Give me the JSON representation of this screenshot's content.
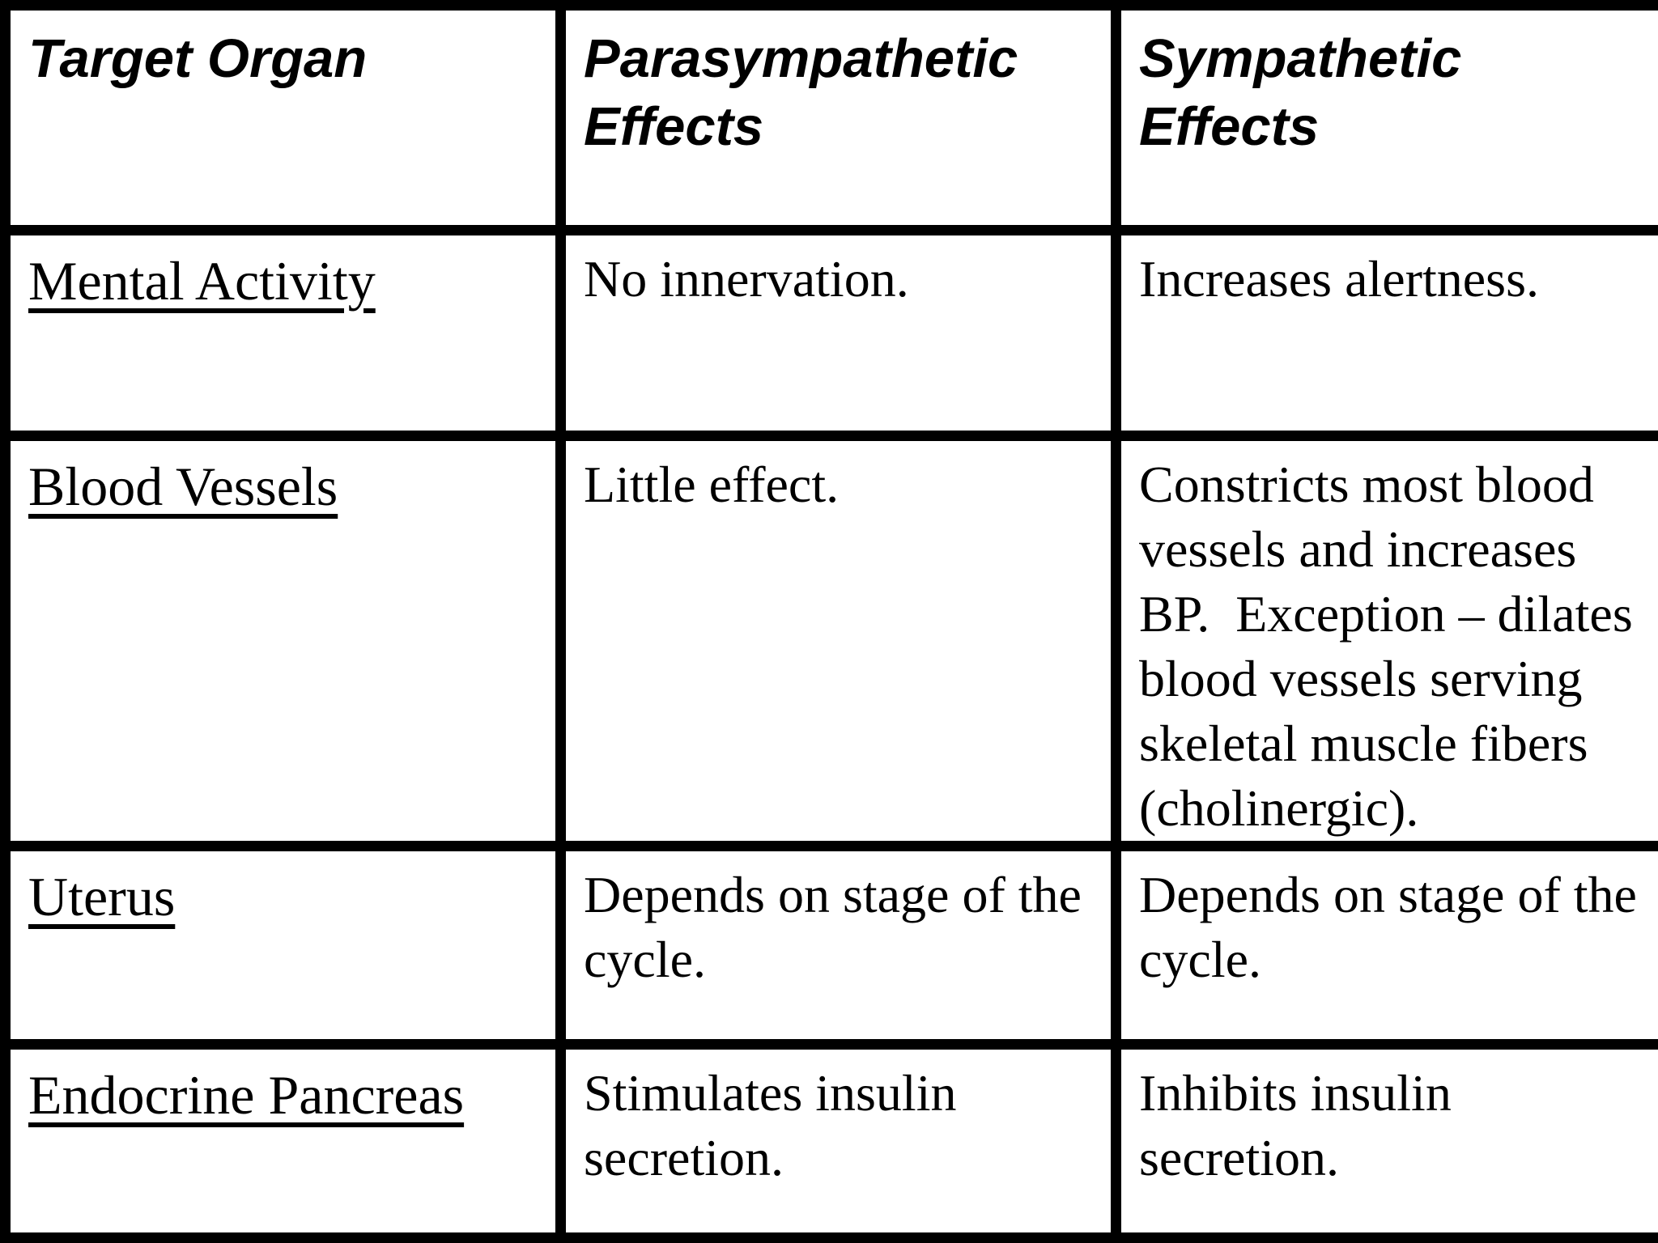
{
  "table": {
    "title": "Target organ autonomic effects table",
    "colors": {
      "border": "#000000",
      "background": "#ffffff",
      "text": "#000000"
    },
    "header": {
      "organ": "Target Organ",
      "parasympathetic": "Parasympathetic Effects",
      "sympathetic": "Sympathetic Effects"
    },
    "rows": [
      {
        "organ": "Mental Activity",
        "parasympathetic": "No innervation.",
        "sympathetic": "Increases alertness."
      },
      {
        "organ": "Blood Vessels",
        "parasympathetic": "Little effect.",
        "sympathetic": "Constricts most blood vessels and increases BP.  Exception – dilates blood vessels serving skeletal muscle fibers (cholinergic)."
      },
      {
        "organ": "Uterus",
        "parasympathetic": "Depends on stage of the cycle.",
        "sympathetic": "Depends on stage of the cycle."
      },
      {
        "organ": "Endocrine Pancreas",
        "parasympathetic": "Stimulates insulin secretion.",
        "sympathetic": "Inhibits insulin secretion."
      }
    ]
  }
}
